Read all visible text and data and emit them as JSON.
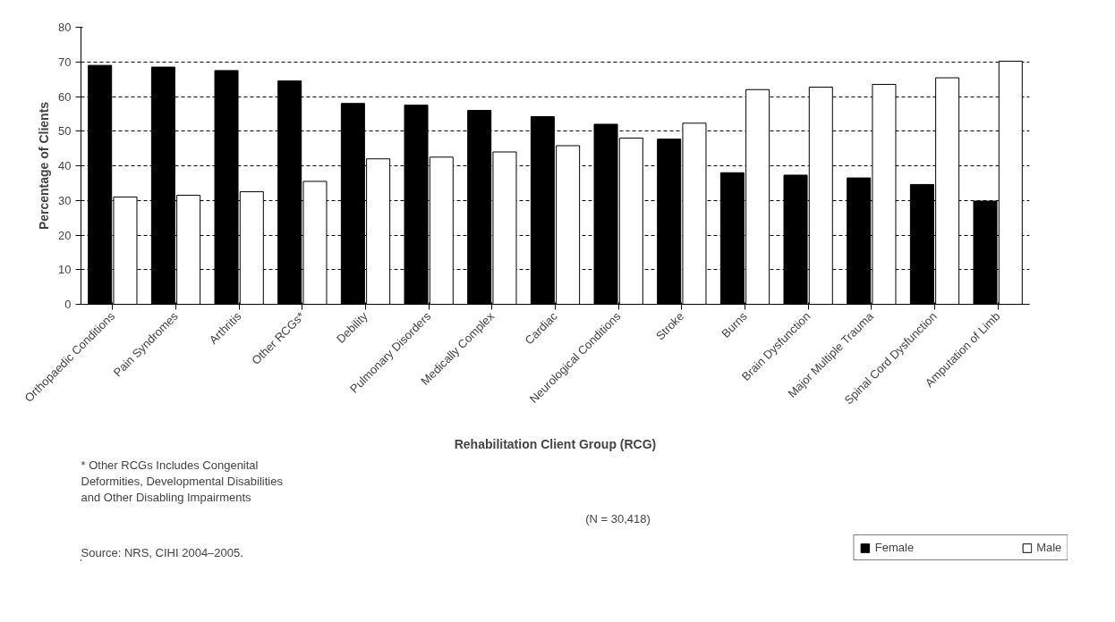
{
  "chart_data": {
    "type": "bar",
    "xlabel": "Rehabilitation Client Group (RCG)",
    "ylabel": "Percentage of Clients",
    "categories": [
      "Orthopaedic Conditions",
      "Pain Syndromes",
      "Arthritis",
      "Other RCGs*",
      "Debility",
      "Pulmonary Disorders",
      "Medically Complex",
      "Cardiac",
      "Neurological Conditions",
      "Stroke",
      "Burns",
      "Brain Dysfunction",
      "Major Multiple Trauma",
      "Spinal Cord Dysfunction",
      "Amputation of Limb"
    ],
    "series": [
      {
        "name": "Female",
        "color": "#000000",
        "values": [
          69,
          68.5,
          67.5,
          64.5,
          58,
          57.5,
          56,
          54.2,
          52,
          47.7,
          38,
          37.3,
          36.5,
          34.6,
          29.8
        ]
      },
      {
        "name": "Male",
        "color": "#ffffff",
        "values": [
          31,
          31.5,
          32.5,
          35.5,
          42,
          42.5,
          44,
          45.8,
          48,
          52.3,
          62,
          62.7,
          63.5,
          65.4,
          70.2
        ]
      }
    ],
    "ylim": [
      0,
      80
    ],
    "yticks": [
      0,
      10,
      20,
      30,
      40,
      50,
      60,
      70,
      80
    ],
    "grid": "y",
    "legend": "bottom right",
    "annotations": [
      "(N = 30,418)",
      "* Other RCGs Includes Congenital Deformities, Developmental Disabilities and Other Disabling Impairments",
      "Source: NRS, CIHI 2004–2005."
    ]
  }
}
